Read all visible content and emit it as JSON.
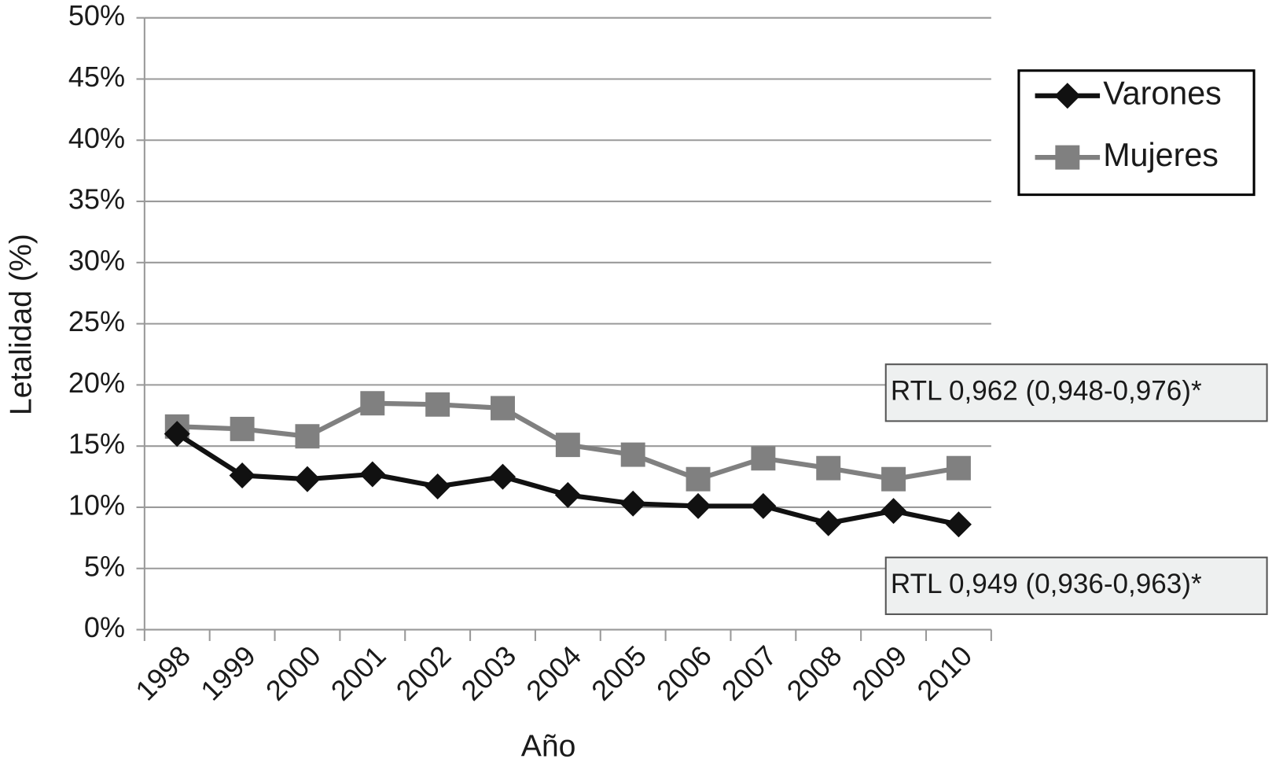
{
  "chart_data": {
    "type": "line",
    "y_label": "Letalidad (%)",
    "x_label": "Año",
    "categories": [
      "1998",
      "1999",
      "2000",
      "2001",
      "2002",
      "2003",
      "2004",
      "2005",
      "2006",
      "2007",
      "2008",
      "2009",
      "2010"
    ],
    "series": [
      {
        "name": "Varones",
        "color": "#111111",
        "marker": "diamond",
        "values": [
          16.0,
          12.6,
          12.3,
          12.7,
          11.7,
          12.5,
          11.0,
          10.3,
          10.1,
          10.1,
          8.7,
          9.7,
          8.6
        ]
      },
      {
        "name": "Mujeres",
        "color": "#808080",
        "marker": "square",
        "values": [
          16.6,
          16.4,
          15.8,
          18.5,
          18.4,
          18.1,
          15.1,
          14.3,
          12.3,
          14.0,
          13.2,
          12.3,
          13.2
        ]
      }
    ],
    "ylim": [
      0,
      50
    ],
    "yticks": [
      {
        "value": 0,
        "label": "0%"
      },
      {
        "value": 5,
        "label": "5%"
      },
      {
        "value": 10,
        "label": "10%"
      },
      {
        "value": 15,
        "label": "15%"
      },
      {
        "value": 20,
        "label": "20%"
      },
      {
        "value": 25,
        "label": "25%"
      },
      {
        "value": 30,
        "label": "30%"
      },
      {
        "value": 35,
        "label": "35%"
      },
      {
        "value": 40,
        "label": "40%"
      },
      {
        "value": 45,
        "label": "45%"
      },
      {
        "value": 50,
        "label": "50%"
      }
    ],
    "grid": true,
    "legend": "upper right",
    "annotations": [
      "RTL 0,962 (0,948-0,976)*",
      "RTL 0,949 (0,936-0,963)*"
    ]
  }
}
